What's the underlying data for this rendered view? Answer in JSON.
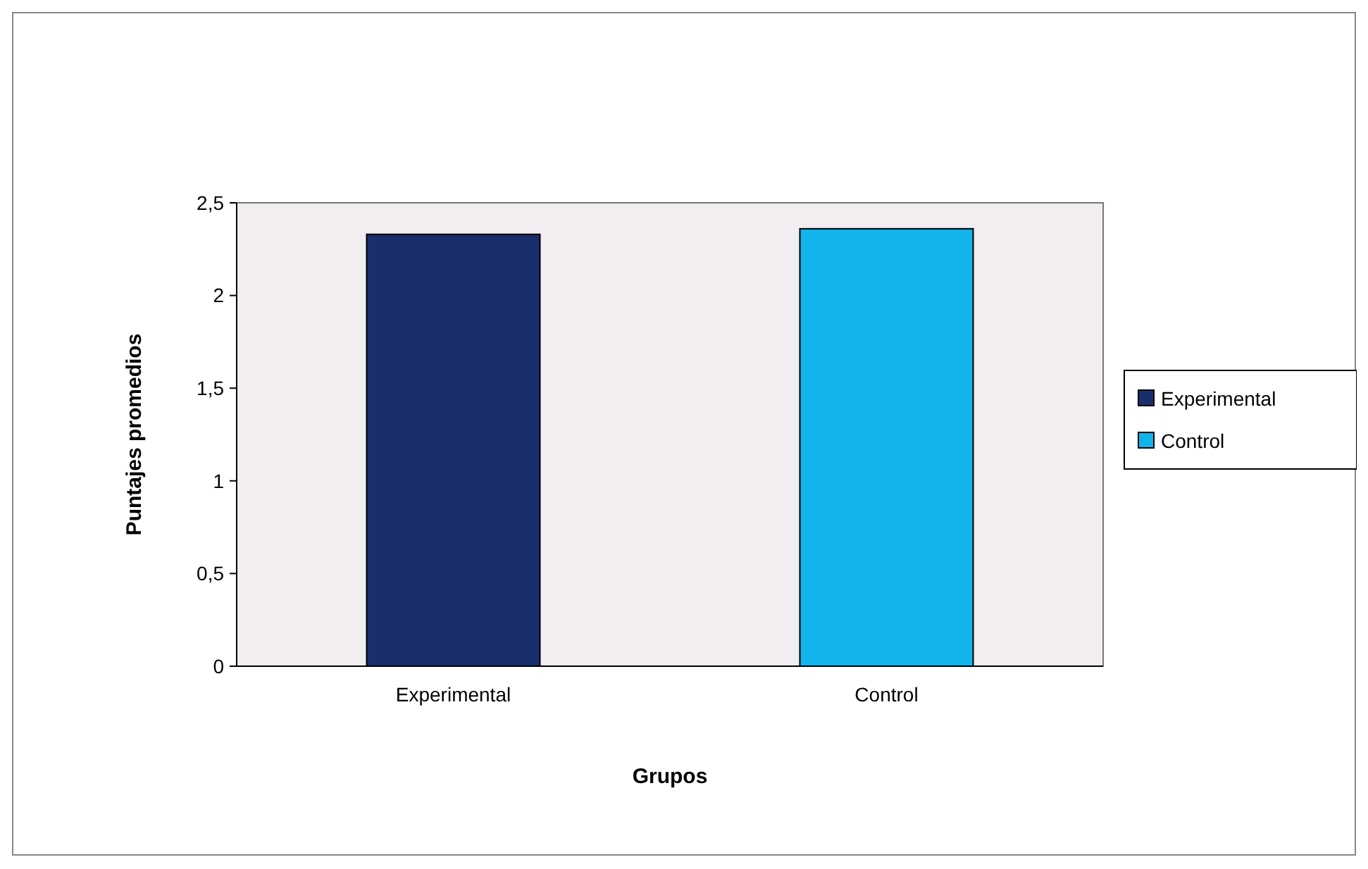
{
  "chart_data": {
    "type": "bar",
    "xlabel": "Grupos",
    "ylabel": "Puntajes promedios",
    "categories": [
      "Experimental",
      "Control"
    ],
    "series": [
      {
        "name": "Experimental",
        "color": "#1a2e6e",
        "values": [
          2.33,
          null
        ]
      },
      {
        "name": "Control",
        "color": "#12b4ec",
        "values": [
          null,
          2.36
        ]
      }
    ],
    "ylim": [
      0,
      2.5
    ],
    "yticks": [
      0,
      {
        "value": 0.5,
        "label": "0,5"
      },
      1,
      {
        "value": 1.5,
        "label": "1,5"
      },
      2,
      {
        "value": 2.5,
        "label": "2,5"
      }
    ],
    "legend": "right",
    "grid": false
  }
}
